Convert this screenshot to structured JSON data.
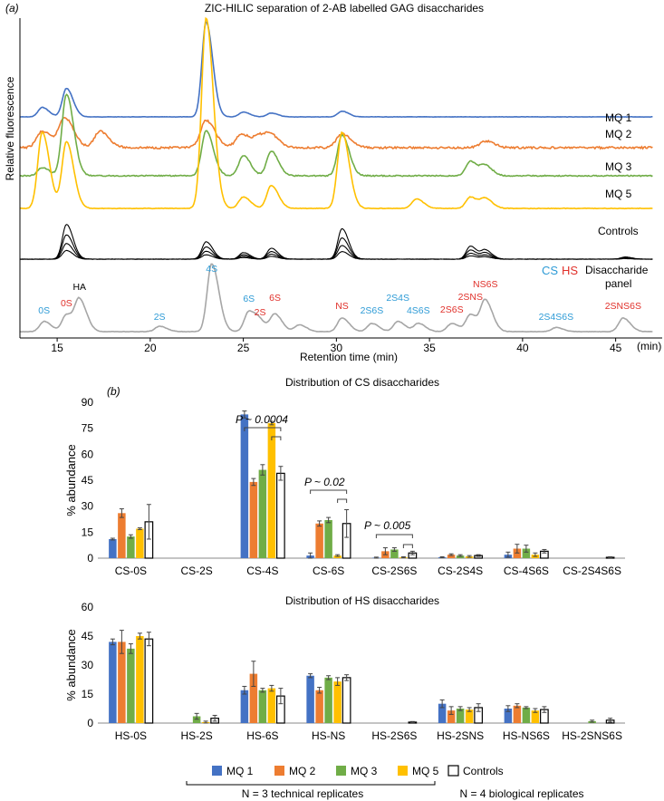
{
  "panel_a": {
    "panel_label": "(a)",
    "title": "ZIC-HILIC separation of 2-AB labelled GAG disaccharides",
    "ylabel": "Relative fluorescence",
    "xlabel": "Retention time (min)",
    "x_unit": "(min)",
    "xticks": [
      "15",
      "20",
      "25",
      "30",
      "35",
      "40",
      "45"
    ],
    "legend_cs": "CS",
    "legend_hs": "HS",
    "panel_label_line1": "Disaccharide",
    "panel_label_line2": "panel"
  },
  "panel_b": {
    "panel_label": "(b)",
    "sig1": "P ~ 0.0004",
    "sig2": "P ~ 0.02",
    "sig3": "P ~ 0.005",
    "legend": {
      "mq1": "MQ 1",
      "mq2": "MQ 2",
      "mq3": "MQ 3",
      "mq5": "MQ 5",
      "controls": "Controls"
    },
    "note_technical": "N = 3 technical replicates",
    "note_biological": "N = 4 biological replicates"
  },
  "colors": {
    "mq1": "#4472C4",
    "mq2": "#ED7D31",
    "mq3": "#70AD47",
    "mq5": "#FFC000",
    "controls": "#000000",
    "panel": "#A6A6A6",
    "cs_label": "#2E9BD6",
    "hs_label": "#E0302A"
  },
  "chart_data": [
    {
      "type": "line",
      "title": "ZIC-HILIC separation of 2-AB labelled GAG disaccharides",
      "xlabel": "Retention time (min)",
      "ylabel": "Relative fluorescence",
      "xlim": [
        13,
        47.5
      ],
      "traces": [
        {
          "name": "MQ 1",
          "color": "#4472C4",
          "peaks": [
            [
              14.2,
              0.1
            ],
            [
              15.5,
              0.3
            ],
            [
              23.0,
              1.0
            ],
            [
              25.0,
              0.05
            ],
            [
              26.5,
              0.04
            ],
            [
              30.3,
              0.06
            ]
          ]
        },
        {
          "name": "MQ 2",
          "color": "#ED7D31",
          "peaks": [
            [
              14.2,
              0.3
            ],
            [
              15.4,
              0.55
            ],
            [
              17.3,
              0.3
            ],
            [
              23.0,
              0.5
            ],
            [
              24.9,
              0.25
            ],
            [
              25.9,
              0.2
            ],
            [
              26.5,
              0.18
            ],
            [
              30.3,
              0.25
            ],
            [
              38.0,
              0.12
            ]
          ]
        },
        {
          "name": "MQ 3",
          "color": "#70AD47",
          "peaks": [
            [
              14.2,
              0.1
            ],
            [
              15.5,
              1.0
            ],
            [
              23.0,
              0.55
            ],
            [
              25.0,
              0.25
            ],
            [
              26.5,
              0.3
            ],
            [
              30.3,
              0.5
            ],
            [
              37.2,
              0.18
            ],
            [
              38.0,
              0.12
            ]
          ]
        },
        {
          "name": "MQ 5",
          "color": "#FFC000",
          "peaks": [
            [
              14.2,
              0.4
            ],
            [
              15.5,
              0.35
            ],
            [
              23.0,
              1.0
            ],
            [
              25.0,
              0.06
            ],
            [
              26.5,
              0.12
            ],
            [
              30.3,
              0.4
            ],
            [
              34.3,
              0.05
            ],
            [
              37.2,
              0.06
            ],
            [
              38.0,
              0.05
            ]
          ]
        },
        {
          "name": "Controls",
          "color": "#000000",
          "peaks": [
            [
              15.5,
              0.8
            ],
            [
              23.0,
              0.4
            ],
            [
              25.0,
              0.15
            ],
            [
              26.5,
              0.25
            ],
            [
              30.3,
              0.7
            ],
            [
              37.2,
              0.3
            ],
            [
              38.0,
              0.2
            ],
            [
              45.5,
              0.05
            ]
          ]
        },
        {
          "name": "Disaccharide panel",
          "color": "#A6A6A6",
          "peaks": [
            [
              14.3,
              0.15
            ],
            [
              15.5,
              0.25
            ],
            [
              16.2,
              0.45
            ],
            [
              20.5,
              0.08
            ],
            [
              23.3,
              1.0
            ],
            [
              25.3,
              0.3
            ],
            [
              25.9,
              0.12
            ],
            [
              26.7,
              0.25
            ],
            [
              28.0,
              0.1
            ],
            [
              30.3,
              0.2
            ],
            [
              31.9,
              0.12
            ],
            [
              33.3,
              0.15
            ],
            [
              34.4,
              0.12
            ],
            [
              36.2,
              0.12
            ],
            [
              37.2,
              0.25
            ],
            [
              38.0,
              0.45
            ],
            [
              41.8,
              0.06
            ],
            [
              45.4,
              0.2
            ]
          ]
        }
      ],
      "peak_labels": [
        {
          "text": "0S",
          "x": 14.3,
          "group": "CS"
        },
        {
          "text": "0S",
          "x": 15.5,
          "group": "HS"
        },
        {
          "text": "HA",
          "x": 16.2,
          "group": "other"
        },
        {
          "text": "2S",
          "x": 20.5,
          "group": "CS"
        },
        {
          "text": "4S",
          "x": 23.3,
          "group": "CS"
        },
        {
          "text": "6S",
          "x": 25.3,
          "group": "CS"
        },
        {
          "text": "2S",
          "x": 25.9,
          "group": "HS"
        },
        {
          "text": "6S",
          "x": 26.7,
          "group": "HS"
        },
        {
          "text": "NS",
          "x": 30.3,
          "group": "HS"
        },
        {
          "text": "2S6S",
          "x": 31.9,
          "group": "CS"
        },
        {
          "text": "2S4S",
          "x": 33.3,
          "group": "CS"
        },
        {
          "text": "4S6S",
          "x": 34.4,
          "group": "CS"
        },
        {
          "text": "2S6S",
          "x": 36.2,
          "group": "HS"
        },
        {
          "text": "2SNS",
          "x": 37.2,
          "group": "HS"
        },
        {
          "text": "NS6S",
          "x": 38.0,
          "group": "HS"
        },
        {
          "text": "2S4S6S",
          "x": 41.8,
          "group": "CS"
        },
        {
          "text": "2SNS6S",
          "x": 45.4,
          "group": "HS"
        }
      ]
    },
    {
      "type": "bar",
      "title": "Distribution of CS disaccharides",
      "ylabel": "% abundance",
      "ylim": [
        0,
        90
      ],
      "yticks": [
        0,
        15,
        30,
        45,
        60,
        75,
        90
      ],
      "categories": [
        "CS-0S",
        "CS-2S",
        "CS-4S",
        "CS-6S",
        "CS-2S6S",
        "CS-2S4S",
        "CS-4S6S",
        "CS-2S4S6S"
      ],
      "series": [
        {
          "name": "MQ 1",
          "values": [
            11,
            0,
            83,
            1.5,
            0.3,
            0.5,
            2,
            0
          ],
          "errors": [
            0.5,
            0,
            2,
            1.5,
            0.3,
            0.3,
            1.5,
            0
          ]
        },
        {
          "name": "MQ 2",
          "values": [
            26,
            0,
            44,
            20,
            4,
            2,
            5.5,
            0
          ],
          "errors": [
            2.5,
            0,
            2,
            1.5,
            2,
            0.5,
            2.5,
            0
          ]
        },
        {
          "name": "MQ 3",
          "values": [
            12.5,
            0,
            51,
            22,
            5,
            1.5,
            5.5,
            0
          ],
          "errors": [
            1,
            0,
            3,
            1.5,
            1,
            0.5,
            2,
            0
          ]
        },
        {
          "name": "MQ 5",
          "values": [
            17,
            0,
            78,
            1.5,
            0.5,
            1,
            2,
            0
          ],
          "errors": [
            0.5,
            0,
            1,
            0.5,
            0.3,
            0.5,
            1,
            0
          ]
        },
        {
          "name": "Controls",
          "values": [
            21,
            0,
            49,
            20,
            3,
            1.5,
            4,
            0.5
          ],
          "errors": [
            10,
            0,
            4,
            8,
            1,
            0.5,
            1,
            0.3
          ]
        }
      ],
      "annotations": [
        {
          "text": "P ~ 0.0004",
          "category": "CS-4S"
        },
        {
          "text": "P ~ 0.02",
          "category": "CS-6S"
        },
        {
          "text": "P ~ 0.005",
          "category": "CS-2S6S"
        }
      ]
    },
    {
      "type": "bar",
      "title": "Distribution of HS disaccharides",
      "ylabel": "% abundance",
      "ylim": [
        0,
        60
      ],
      "yticks": [
        0,
        15,
        30,
        45,
        60
      ],
      "categories": [
        "HS-0S",
        "HS-2S",
        "HS-6S",
        "HS-NS",
        "HS-2S6S",
        "HS-2SNS",
        "HS-NS6S",
        "HS-2SNS6S"
      ],
      "series": [
        {
          "name": "MQ 1",
          "values": [
            42,
            0,
            17,
            24.5,
            0,
            10,
            7.5,
            0
          ],
          "errors": [
            1.5,
            0,
            2,
            1,
            0,
            2,
            1.5,
            0
          ]
        },
        {
          "name": "MQ 2",
          "values": [
            42,
            0,
            25.5,
            17,
            0,
            6.5,
            9,
            0
          ],
          "errors": [
            6,
            0,
            6.5,
            1.5,
            0,
            2,
            1,
            0
          ]
        },
        {
          "name": "MQ 3",
          "values": [
            38.5,
            3.5,
            17,
            23.5,
            0,
            7.5,
            8,
            1
          ],
          "errors": [
            2.5,
            1.5,
            1,
            1,
            0,
            1,
            0.5,
            0.5
          ]
        },
        {
          "name": "MQ 5",
          "values": [
            45,
            0.5,
            18,
            21.5,
            0,
            7,
            6.5,
            0
          ],
          "errors": [
            1.5,
            0.5,
            1.5,
            2,
            0,
            1,
            1,
            0
          ]
        },
        {
          "name": "Controls",
          "values": [
            43.5,
            2.5,
            14,
            23.5,
            0.5,
            8,
            7,
            1.5
          ],
          "errors": [
            3.5,
            1.5,
            4,
            1.5,
            0.3,
            2,
            1.5,
            1
          ]
        }
      ]
    }
  ]
}
